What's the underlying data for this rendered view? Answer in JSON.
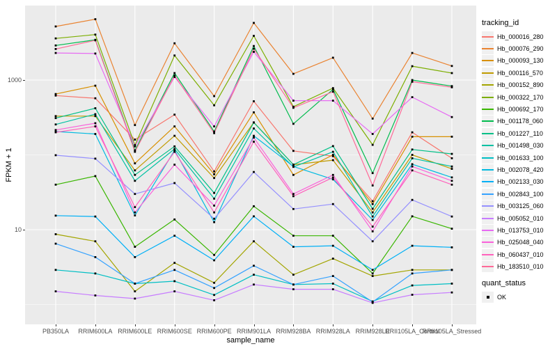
{
  "chart_data": {
    "type": "line",
    "xlabel": "sample_name",
    "ylabel": "FPKM + 1",
    "y_scale": "log10",
    "y_ticks": [
      1000,
      10
    ],
    "y_minor_gridlines": [
      100,
      1
    ],
    "ylim_log10": [
      -0.26,
      4.0
    ],
    "grid": "white major/minor gridlines on gray panel",
    "legend_position": "right",
    "categories": [
      "PB350LA",
      "RRIM600LA",
      "RRIM600LE",
      "RRIM600SE",
      "RRIM600PE",
      "RRIM901LA",
      "RRIM928BA",
      "RRIM928LA",
      "RRIM928LE",
      "RRII105LA_Control",
      "RRII105LA_Stressed"
    ],
    "series": [
      {
        "name": "Hb_000016_280",
        "color": "#F8766D",
        "values": [
          620,
          570,
          160,
          345,
          60,
          520,
          113,
          96,
          24,
          200,
          90
        ]
      },
      {
        "name": "Hb_000076_290",
        "color": "#EA8331",
        "values": [
          5200,
          6500,
          250,
          3100,
          610,
          5800,
          1210,
          1990,
          305,
          2300,
          1540
        ]
      },
      {
        "name": "Hb_000093_130",
        "color": "#D89000",
        "values": [
          650,
          840,
          77,
          240,
          55,
          370,
          54,
          100,
          22,
          175,
          175
        ]
      },
      {
        "name": "Hb_000116_570",
        "color": "#C09B00",
        "values": [
          330,
          330,
          62,
          180,
          49,
          272,
          74,
          85,
          17,
          100,
          65
        ]
      },
      {
        "name": "Hb_000152_890",
        "color": "#A3A500",
        "values": [
          8.7,
          7,
          1.5,
          3.6,
          1.95,
          7,
          2.5,
          4.1,
          2.4,
          2.9,
          2.9
        ]
      },
      {
        "name": "Hb_000322_170",
        "color": "#7CAE00",
        "values": [
          3600,
          4050,
          135,
          2130,
          460,
          3900,
          440,
          780,
          136,
          1530,
          1240
        ]
      },
      {
        "name": "Hb_000692_170",
        "color": "#39B600",
        "values": [
          40,
          52,
          5.9,
          13.7,
          4.6,
          20.6,
          8.3,
          8.3,
          2.6,
          15.1,
          10.3
        ]
      },
      {
        "name": "Hb_001178_060",
        "color": "#00BB4E",
        "values": [
          2900,
          3450,
          115,
          1240,
          205,
          2850,
          260,
          750,
          57,
          1000,
          830
        ]
      },
      {
        "name": "Hb_001227_110",
        "color": "#00C087",
        "values": [
          310,
          420,
          54,
          130,
          31,
          270,
          74,
          131,
          19,
          118,
          103
        ]
      },
      {
        "name": "Hb_001498_030",
        "color": "#00C1A3",
        "values": [
          255,
          350,
          45,
          120,
          26,
          225,
          69,
          110,
          15,
          90,
          70
        ]
      },
      {
        "name": "Hb_001633_100",
        "color": "#00BFC4",
        "values": [
          2.9,
          2.6,
          1.9,
          2.05,
          1.34,
          2.5,
          1.85,
          1.9,
          1.1,
          1.8,
          1.9
        ]
      },
      {
        "name": "Hb_002078_420",
        "color": "#00BAE0",
        "values": [
          205,
          190,
          15.5,
          115,
          12.6,
          180,
          70,
          47,
          13.5,
          75,
          50
        ]
      },
      {
        "name": "Hb_002133_030",
        "color": "#00B0F6",
        "values": [
          15.4,
          15,
          4.3,
          8.3,
          3.9,
          15.1,
          5.9,
          6.1,
          2.9,
          6.1,
          5.8
        ]
      },
      {
        "name": "Hb_002843_100",
        "color": "#35A2FF",
        "values": [
          6.5,
          4.3,
          1.9,
          2.9,
          1.66,
          3.3,
          1.85,
          2.4,
          1.08,
          2.6,
          2.9
        ]
      },
      {
        "name": "Hb_003125_060",
        "color": "#9590FF",
        "values": [
          99,
          89,
          30,
          42,
          14,
          59,
          18.9,
          22,
          7,
          25,
          15
        ]
      },
      {
        "name": "Hb_005052_010",
        "color": "#C77CFF",
        "values": [
          1.5,
          1.32,
          1.2,
          1.5,
          1.14,
          1.85,
          1.6,
          1.6,
          1.05,
          1.35,
          1.45
        ]
      },
      {
        "name": "Hb_013753_010",
        "color": "#E76BF3",
        "values": [
          2300,
          2260,
          130,
          1100,
          240,
          2380,
          530,
          530,
          190,
          590,
          320
        ]
      },
      {
        "name": "Hb_025048_040",
        "color": "#FA62DB",
        "values": [
          215,
          265,
          17,
          74,
          21,
          170,
          30,
          54,
          9.5,
          70,
          45
        ]
      },
      {
        "name": "Hb_060437_010",
        "color": "#FF62BC",
        "values": [
          200,
          240,
          20,
          110,
          17,
          150,
          28,
          50,
          11,
          62,
          40
        ]
      },
      {
        "name": "Hb_183510_010",
        "color": "#FF6A98",
        "values": [
          2600,
          3400,
          110,
          1150,
          195,
          2620,
          425,
          700,
          39,
          950,
          800
        ]
      }
    ],
    "legend": {
      "tracking_title": "tracking_id",
      "quant_title": "quant_status",
      "quant_label": "OK"
    }
  },
  "colors": {
    "panel_background": "#EBEBEB",
    "gridline": "#FFFFFF",
    "marker": "#000000",
    "tick_label": "#4D4D4D",
    "axis_title": "#000000",
    "legend_key_background": "#F0F0F0"
  }
}
